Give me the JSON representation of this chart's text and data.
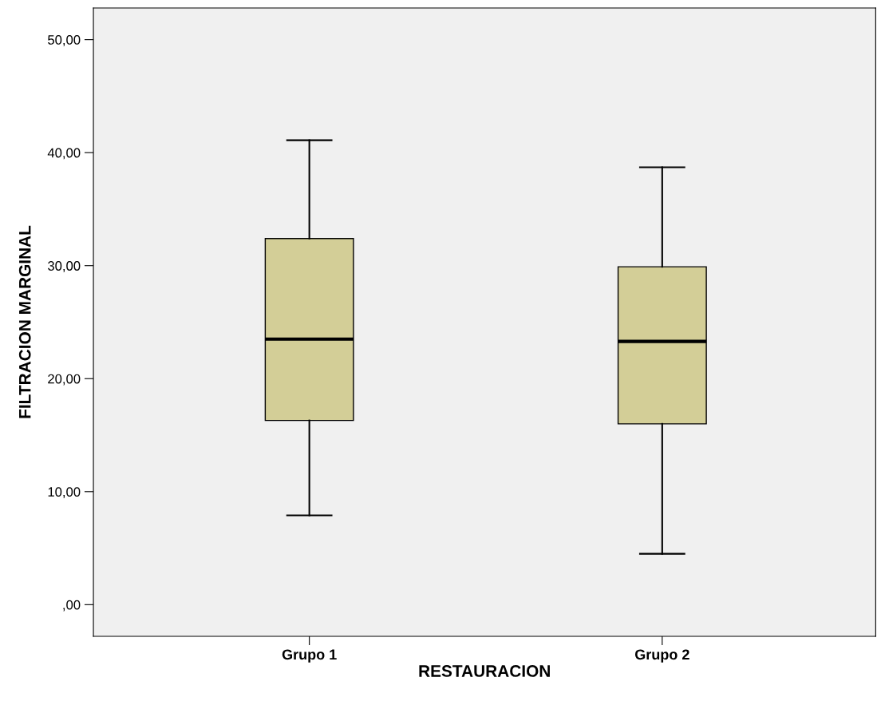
{
  "chart_data": {
    "type": "box",
    "xlabel": "RESTAURACION",
    "ylabel": "FILTRACION MARGINAL",
    "categories": [
      "Grupo 1",
      "Grupo 2"
    ],
    "boxes": [
      {
        "low": 7.9,
        "q1": 16.3,
        "median": 23.5,
        "q3": 32.4,
        "high": 41.1
      },
      {
        "low": 4.5,
        "q1": 16.0,
        "median": 23.3,
        "q3": 29.9,
        "high": 38.7
      }
    ],
    "color": "#d3ce97",
    "ylim": [
      -2.8,
      52.8
    ],
    "yticks": [
      {
        "value": 0,
        "label": ",00"
      },
      {
        "value": 10,
        "label": "10,00"
      },
      {
        "value": 20,
        "label": "20,00"
      },
      {
        "value": 30,
        "label": "30,00"
      },
      {
        "value": 40,
        "label": "40,00"
      },
      {
        "value": 50,
        "label": "50,00"
      }
    ],
    "grid": false
  }
}
